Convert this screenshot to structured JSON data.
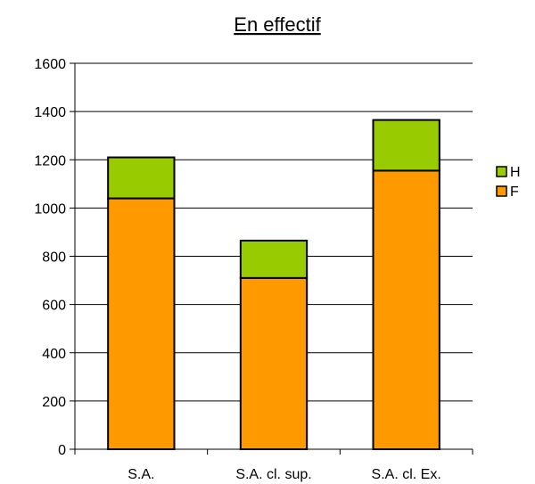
{
  "chart_data": {
    "type": "bar",
    "stacked": true,
    "title": "En effectif",
    "categories": [
      "S.A.",
      "S.A. cl. sup.",
      "S.A. cl. Ex."
    ],
    "series": [
      {
        "name": "F",
        "values": [
          1040,
          710,
          1155
        ],
        "color": "#ff9900"
      },
      {
        "name": "H",
        "values": [
          170,
          155,
          210
        ],
        "color": "#99cc00"
      }
    ],
    "ylim": [
      0,
      1600
    ],
    "yticks": [
      0,
      200,
      400,
      600,
      800,
      1000,
      1200,
      1400,
      1600
    ],
    "grid": true,
    "legend_position": "right",
    "legend_order": [
      "H",
      "F"
    ]
  }
}
